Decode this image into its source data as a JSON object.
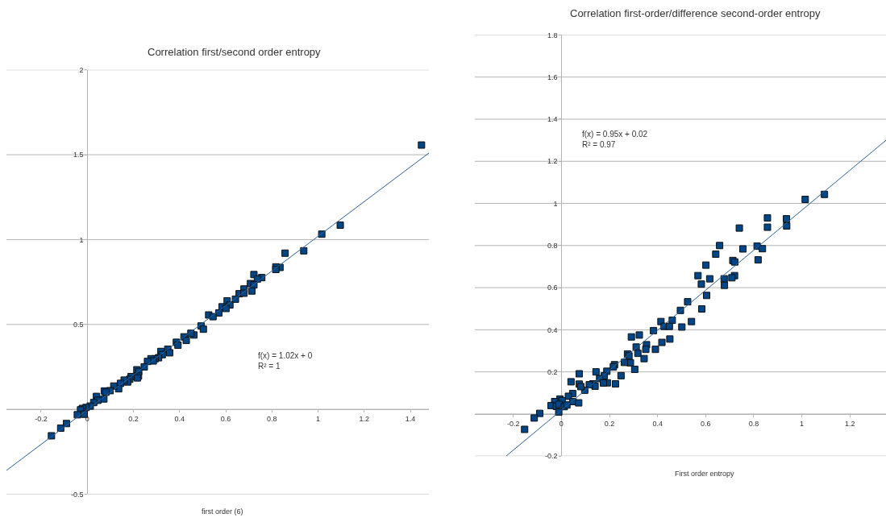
{
  "chart_data": [
    {
      "type": "scatter",
      "title": "Correlation first/second order entropy",
      "xlabel": "first order (6)",
      "xlim": [
        -0.35,
        1.48
      ],
      "xticks": [
        -0.2,
        0,
        0.2,
        0.4,
        0.6,
        0.8,
        1,
        1.2,
        1.4
      ],
      "ylim": [
        -0.5,
        2
      ],
      "yticks": [
        -0.5,
        {
          "value": 0,
          "label": null
        },
        0.5,
        1,
        1.5,
        2
      ],
      "grid": "y",
      "annotations": [
        "f(x) = 1.02x + 0\nR² = 1"
      ],
      "series": [
        {
          "color": "#004586",
          "marker": "square",
          "x": [
            1.448,
            1.096,
            1.016,
            0.938,
            0.857,
            0.835,
            0.817,
            0.817,
            0.722,
            0.756,
            0.737,
            0.707,
            0.679,
            0.722,
            0.713,
            0.658,
            0.679,
            0.642,
            0.606,
            0.618,
            0.584,
            0.601,
            0.57,
            0.526,
            0.545,
            0.493,
            0.503,
            0.462,
            0.449,
            0.419,
            0.429,
            0.386,
            0.393,
            0.349,
            0.357,
            0.319,
            0.325,
            0.309,
            0.294,
            0.276,
            0.286,
            0.261,
            0.247,
            0.215,
            0.223,
            0.222,
            0.217,
            0.19,
            0.184,
            0.175,
            0.16,
            0.144,
            0.136,
            0.115,
            0.099,
            0.074,
            0.081,
            0.072,
            0.04,
            0.046,
            0.028,
            0.013,
            -0.005,
            -0.021,
            -0.029,
            -0.013,
            -0.043,
            -0.09,
            -0.115,
            -0.155
          ],
          "values": [
            1.557,
            1.085,
            1.032,
            0.934,
            0.92,
            0.836,
            0.839,
            0.824,
            0.794,
            0.776,
            0.768,
            0.741,
            0.709,
            0.733,
            0.697,
            0.681,
            0.684,
            0.649,
            0.639,
            0.615,
            0.604,
            0.594,
            0.568,
            0.556,
            0.546,
            0.491,
            0.472,
            0.438,
            0.448,
            0.427,
            0.406,
            0.395,
            0.378,
            0.354,
            0.333,
            0.341,
            0.322,
            0.304,
            0.298,
            0.298,
            0.285,
            0.282,
            0.25,
            0.233,
            0.222,
            0.196,
            0.185,
            0.193,
            0.177,
            0.161,
            0.172,
            0.153,
            0.121,
            0.137,
            0.11,
            0.108,
            0.101,
            0.061,
            0.076,
            0.053,
            0.04,
            0.019,
            0.011,
            0.005,
            -0.003,
            -0.029,
            -0.032,
            -0.084,
            -0.111,
            -0.156
          ]
        },
        {
          "type": "line",
          "color": "#2a6099",
          "x": [
            -0.35,
            1.48
          ],
          "values": [
            -0.36,
            1.51
          ]
        }
      ]
    },
    {
      "type": "scatter",
      "title": "Correlation first-order/difference second-order entropy",
      "xlabel": "First order entropy",
      "xlim": [
        -0.36,
        1.35
      ],
      "xticks": [
        -0.2,
        0,
        0.2,
        0.4,
        0.6,
        0.8,
        1,
        1.2
      ],
      "ylim": [
        -0.2,
        1.8
      ],
      "yticks": [
        -0.2,
        {
          "value": 0,
          "label": null
        },
        0.2,
        0.4,
        0.6,
        0.8,
        1,
        1.2,
        1.4,
        1.6,
        1.8
      ],
      "grid": "y",
      "annotations": [
        "f(x) = 0.95x + 0.02\nR² = 0.97"
      ],
      "series": [
        {
          "color": "#004586",
          "marker": "square",
          "x": [
            1.094,
            1.014,
            0.936,
            0.937,
            0.857,
            0.857,
            0.74,
            0.658,
            0.642,
            0.814,
            0.755,
            0.836,
            0.818,
            0.713,
            0.721,
            0.601,
            0.568,
            0.72,
            0.709,
            0.617,
            0.677,
            0.678,
            0.582,
            0.604,
            0.584,
            0.525,
            0.495,
            0.501,
            0.541,
            0.414,
            0.461,
            0.427,
            0.449,
            0.383,
            0.451,
            0.418,
            0.391,
            0.324,
            0.291,
            0.354,
            0.351,
            0.311,
            0.318,
            0.344,
            0.275,
            0.281,
            0.305,
            0.287,
            0.262,
            0.221,
            0.216,
            0.248,
            0.225,
            0.189,
            0.191,
            0.144,
            0.178,
            0.159,
            0.175,
            0.131,
            0.14,
            0.116,
            0.097,
            0.074,
            0.074,
            0.081,
            0.04,
            0.047,
            0.029,
            0.048,
            0.072,
            -0.006,
            0.003,
            -0.028,
            -0.043,
            -0.021,
            -0.01,
            0.012,
            0.023,
            -0.011,
            -0.09,
            -0.113,
            -0.153
          ],
          "values": [
            1.043,
            1.019,
            0.927,
            0.893,
            0.931,
            0.887,
            0.883,
            0.8,
            0.759,
            0.797,
            0.784,
            0.785,
            0.732,
            0.729,
            0.722,
            0.707,
            0.657,
            0.657,
            0.647,
            0.642,
            0.642,
            0.611,
            0.617,
            0.563,
            0.499,
            0.533,
            0.492,
            0.413,
            0.439,
            0.439,
            0.445,
            0.416,
            0.416,
            0.396,
            0.356,
            0.34,
            0.307,
            0.375,
            0.366,
            0.329,
            0.307,
            0.318,
            0.288,
            0.263,
            0.285,
            0.276,
            0.212,
            0.243,
            0.245,
            0.234,
            0.224,
            0.182,
            0.143,
            0.203,
            0.148,
            0.2,
            0.181,
            0.168,
            0.147,
            0.143,
            0.132,
            0.139,
            0.113,
            0.191,
            0.142,
            0.13,
            0.153,
            0.097,
            0.084,
            0.059,
            0.053,
            0.071,
            0.063,
            0.059,
            0.04,
            0.036,
            0.046,
            0.035,
            0.043,
            0.009,
            0.003,
            -0.019,
            -0.073
          ]
        },
        {
          "type": "line",
          "color": "#2a6099",
          "x": [
            -0.23,
            1.35
          ],
          "values": [
            -0.2,
            1.3
          ]
        }
      ]
    }
  ]
}
